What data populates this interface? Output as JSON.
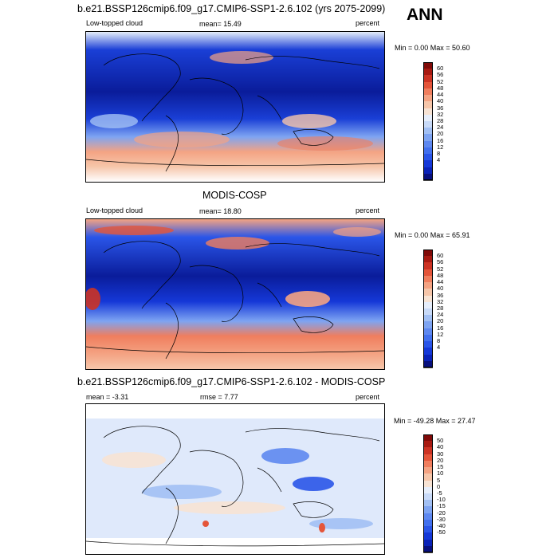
{
  "figure": {
    "season": "ANN"
  },
  "panels": [
    {
      "id": "model",
      "title": "b.e21.BSSP126cmip6.f09_g17.CMIP6-SSP1-2.6.102 (yrs 2075-2099)",
      "left_label": "Low-topped cloud",
      "center_label": "mean=  15.49",
      "right_label": "percent",
      "minmax": "Min =   0.00 Max =  50.60",
      "colorbar": {
        "colors": [
          "#08107e",
          "#0a22b8",
          "#1538d8",
          "#2a55e8",
          "#4270ee",
          "#5e88f0",
          "#7ea4f2",
          "#a2c0f4",
          "#c8daf8",
          "#e6eefb",
          "#f7e3d4",
          "#f6c6aa",
          "#f4a383",
          "#f07e5e",
          "#e4553a",
          "#cc3324",
          "#a81a12",
          "#800a08"
        ],
        "labels": [
          "60",
          "56",
          "52",
          "48",
          "44",
          "40",
          "36",
          "32",
          "28",
          "24",
          "20",
          "16",
          "12",
          "8",
          "4"
        ]
      }
    },
    {
      "id": "obs",
      "title": "MODIS-COSP",
      "left_label": "Low-topped cloud",
      "center_label": "mean=  18.80",
      "right_label": "percent",
      "minmax": "Min =   0.00 Max =  65.91",
      "colorbar": {
        "colors": [
          "#08107e",
          "#0a22b8",
          "#1538d8",
          "#2a55e8",
          "#4270ee",
          "#5e88f0",
          "#7ea4f2",
          "#a2c0f4",
          "#c8daf8",
          "#e6eefb",
          "#f7e3d4",
          "#f6c6aa",
          "#f4a383",
          "#f07e5e",
          "#e4553a",
          "#cc3324",
          "#a81a12",
          "#800a08"
        ],
        "labels": [
          "60",
          "56",
          "52",
          "48",
          "44",
          "40",
          "36",
          "32",
          "28",
          "24",
          "20",
          "16",
          "12",
          "8",
          "4"
        ]
      }
    },
    {
      "id": "diff",
      "title": "b.e21.BSSP126cmip6.f09_g17.CMIP6-SSP1-2.6.102 - MODIS-COSP",
      "left_label": "mean =  -3.31",
      "center_label": "rmse =   7.77",
      "right_label": "percent",
      "minmax": "Min = -49.28 Max =  27.47",
      "colorbar": {
        "colors": [
          "#08107e",
          "#0a22b8",
          "#1538d8",
          "#2a55e8",
          "#4270ee",
          "#5e88f0",
          "#7ea4f2",
          "#a2c0f4",
          "#c8daf8",
          "#e6eefb",
          "#f7e3d4",
          "#f6c6aa",
          "#f4a383",
          "#f07e5e",
          "#e4553a",
          "#cc3324",
          "#a81a12",
          "#800a08"
        ],
        "labels": [
          "50",
          "40",
          "30",
          "20",
          "15",
          "10",
          "5",
          "0",
          "-5",
          "-10",
          "-15",
          "-20",
          "-30",
          "-40",
          "-50"
        ]
      }
    }
  ]
}
